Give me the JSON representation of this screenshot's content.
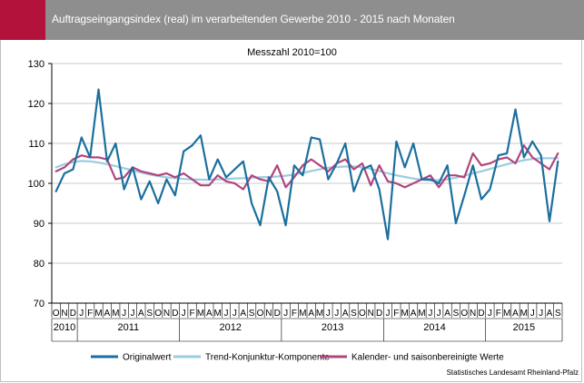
{
  "title": "Auftragseingangsindex (real) im verarbeitenden Gewerbe 2010 - 2015 nach Monaten",
  "subtitle": "Messzahl 2010=100",
  "source": "Statistisches Landesamt Rheinland-Pfalz",
  "colors": {
    "header": "#8e8e8e",
    "accent": "#b3123a",
    "series": [
      "#1b6f9e",
      "#9ccbe0",
      "#b0467e"
    ]
  },
  "chart_data": {
    "type": "line",
    "ylim": [
      70,
      130
    ],
    "yticks": [
      70,
      80,
      90,
      100,
      110,
      120,
      130
    ],
    "grid": true,
    "legend_position": "bottom",
    "month_labels": [
      "O",
      "N",
      "D",
      "J",
      "F",
      "M",
      "A",
      "M",
      "J",
      "J",
      "A",
      "S",
      "O",
      "N",
      "D",
      "J",
      "F",
      "M",
      "A",
      "M",
      "J",
      "J",
      "A",
      "S",
      "O",
      "N",
      "D",
      "J",
      "F",
      "M",
      "A",
      "M",
      "J",
      "J",
      "A",
      "S",
      "O",
      "N",
      "D",
      "J",
      "F",
      "M",
      "A",
      "M",
      "J",
      "J",
      "A",
      "S",
      "O",
      "N",
      "D",
      "J",
      "F",
      "M",
      "A",
      "M",
      "J",
      "J",
      "A",
      "S"
    ],
    "years": [
      {
        "label": "2010",
        "start": 0,
        "count": 3
      },
      {
        "label": "2011",
        "start": 3,
        "count": 12
      },
      {
        "label": "2012",
        "start": 15,
        "count": 12
      },
      {
        "label": "2013",
        "start": 27,
        "count": 12
      },
      {
        "label": "2014",
        "start": 39,
        "count": 12
      },
      {
        "label": "2015",
        "start": 51,
        "count": 9
      }
    ],
    "series": [
      {
        "name": "Originalwert",
        "values": [
          98.0,
          102.5,
          103.5,
          111.5,
          106.5,
          123.5,
          105.5,
          110.0,
          98.5,
          104.0,
          96.0,
          100.5,
          95.0,
          101.0,
          97.0,
          108.0,
          109.5,
          112.0,
          101.0,
          106.0,
          101.5,
          103.5,
          105.5,
          95.0,
          89.5,
          101.5,
          98.0,
          89.5,
          104.5,
          102.0,
          111.5,
          111.0,
          101.0,
          105.0,
          110.0,
          98.0,
          103.5,
          104.5,
          98.5,
          86.0,
          110.5,
          104.0,
          110.0,
          101.0,
          101.0,
          100.0,
          104.5,
          90.0,
          97.0,
          104.5,
          96.0,
          98.5,
          107.0,
          107.5,
          118.5,
          106.5,
          110.5,
          107.0,
          90.5,
          105.5
        ]
      },
      {
        "name": "Trend-Konjunktur-Komponente",
        "values": [
          104.0,
          104.8,
          105.3,
          105.6,
          105.5,
          105.2,
          104.8,
          104.3,
          103.8,
          103.2,
          102.7,
          102.2,
          101.8,
          101.5,
          101.3,
          101.1,
          101.0,
          100.9,
          100.9,
          101.0,
          101.1,
          101.2,
          101.3,
          101.4,
          101.5,
          101.6,
          101.7,
          101.9,
          102.2,
          102.6,
          103.1,
          103.5,
          103.9,
          104.1,
          104.2,
          104.2,
          104.0,
          103.6,
          103.1,
          102.5,
          102.0,
          101.6,
          101.2,
          100.9,
          100.7,
          100.8,
          101.0,
          101.4,
          101.9,
          102.5,
          103.0,
          103.6,
          104.2,
          104.8,
          105.3,
          105.8,
          106.1,
          106.3,
          106.3,
          106.3
        ]
      },
      {
        "name": "Kalender- und saisonbereinigte Werte",
        "values": [
          103.0,
          104.0,
          106.0,
          107.0,
          106.5,
          106.5,
          106.0,
          101.0,
          101.5,
          104.0,
          103.0,
          102.5,
          102.0,
          102.5,
          101.5,
          102.5,
          101.0,
          99.5,
          99.5,
          102.0,
          100.5,
          100.0,
          98.5,
          102.0,
          101.0,
          100.5,
          104.5,
          99.0,
          101.5,
          104.5,
          106.0,
          104.5,
          103.0,
          105.0,
          106.0,
          103.5,
          105.0,
          99.5,
          104.5,
          100.5,
          100.0,
          99.0,
          100.0,
          101.0,
          102.0,
          99.0,
          102.0,
          102.0,
          101.5,
          107.5,
          104.5,
          105.0,
          106.0,
          106.5,
          105.0,
          109.5,
          106.5,
          105.0,
          103.5,
          107.5
        ]
      }
    ]
  }
}
